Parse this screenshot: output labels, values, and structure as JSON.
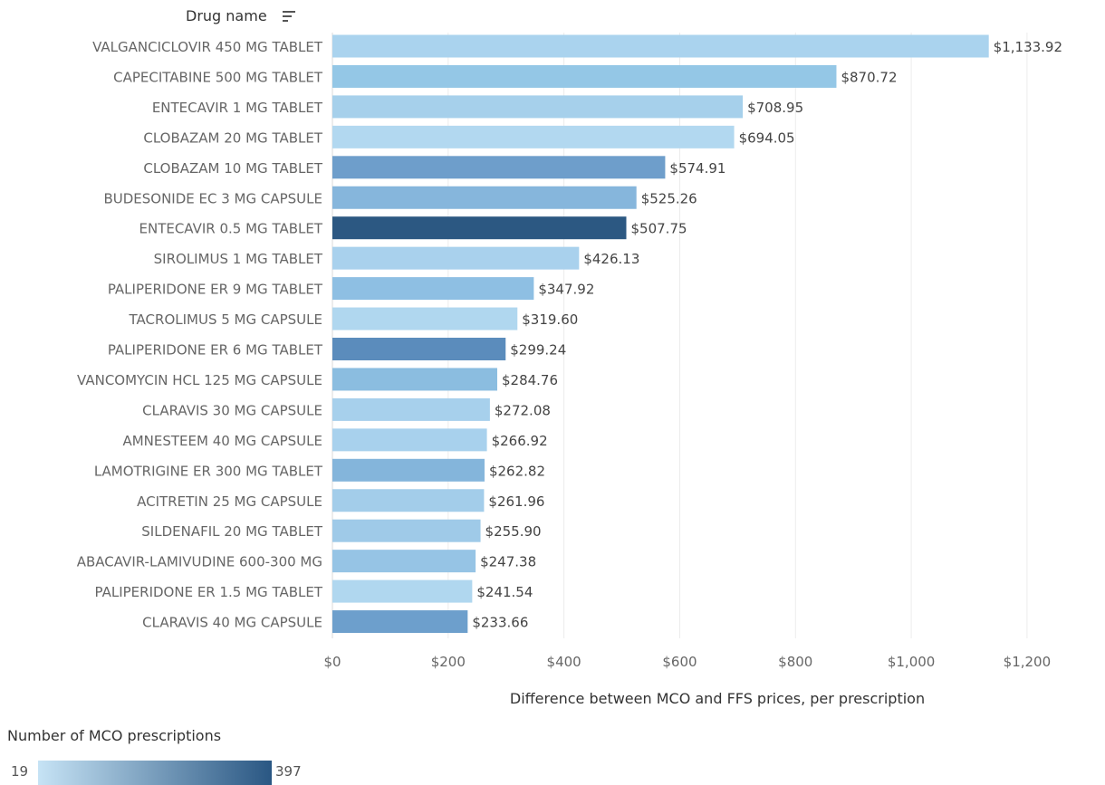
{
  "header": {
    "label": "Drug name",
    "sort_icon": "sort-descending-icon"
  },
  "chart_data": {
    "type": "bar",
    "orientation": "horizontal",
    "xlabel": "Difference between MCO and FFS prices, per prescription",
    "xlim": [
      0,
      1330
    ],
    "x_ticks": [
      0,
      200,
      400,
      600,
      800,
      1000,
      1200
    ],
    "x_tick_labels": [
      "$0",
      "$200",
      "$400",
      "$600",
      "$800",
      "$1,000",
      "$1,200"
    ],
    "grid": "vertical",
    "categories": [
      "VALGANCICLOVIR 450 MG TABLET",
      "CAPECITABINE 500 MG TABLET",
      "ENTECAVIR 1 MG TABLET",
      "CLOBAZAM 20 MG TABLET",
      "CLOBAZAM 10 MG TABLET",
      "BUDESONIDE EC 3 MG CAPSULE",
      "ENTECAVIR 0.5 MG TABLET",
      "SIROLIMUS 1 MG TABLET",
      "PALIPERIDONE ER 9 MG TABLET",
      "TACROLIMUS 5 MG CAPSULE",
      "PALIPERIDONE ER 6 MG TABLET",
      "VANCOMYCIN HCL 125 MG CAPSULE",
      "CLARAVIS 30 MG CAPSULE",
      "AMNESTEEM 40 MG CAPSULE",
      "LAMOTRIGINE ER 300 MG TABLET",
      "ACITRETIN 25 MG CAPSULE",
      "SILDENAFIL 20 MG TABLET",
      "ABACAVIR-LAMIVUDINE 600-300 MG",
      "PALIPERIDONE ER 1.5 MG TABLET",
      "CLARAVIS 40 MG CAPSULE"
    ],
    "values": [
      1133.92,
      870.72,
      708.95,
      694.05,
      574.91,
      525.26,
      507.75,
      426.13,
      347.92,
      319.6,
      299.24,
      284.76,
      272.08,
      266.92,
      262.82,
      261.96,
      255.9,
      247.38,
      241.54,
      233.66
    ],
    "value_labels": [
      "$1,133.92",
      "$870.72",
      "$708.95",
      "$694.05",
      "$574.91",
      "$525.26",
      "$507.75",
      "$426.13",
      "$347.92",
      "$319.60",
      "$299.24",
      "$284.76",
      "$272.08",
      "$266.92",
      "$262.82",
      "$261.96",
      "$255.90",
      "$247.38",
      "$241.54",
      "$233.66"
    ],
    "colors": [
      "#aad3ee",
      "#94c7e6",
      "#a6d0eb",
      "#b2d8f0",
      "#6e9ecb",
      "#86b6dc",
      "#2c5882",
      "#a9d1ed",
      "#8ebfe3",
      "#b0d7ef",
      "#5b8cbc",
      "#8bbde0",
      "#a7d0ec",
      "#a8d1ed",
      "#84b5db",
      "#a3cdea",
      "#9fcae8",
      "#96c4e5",
      "#b0d7ef",
      "#6d9fcc"
    ],
    "color_legend": {
      "title": "Number of MCO prescriptions",
      "min_label": "19",
      "max_label": "397",
      "min_color": "#c6e3f5",
      "max_color": "#2a5783"
    }
  }
}
